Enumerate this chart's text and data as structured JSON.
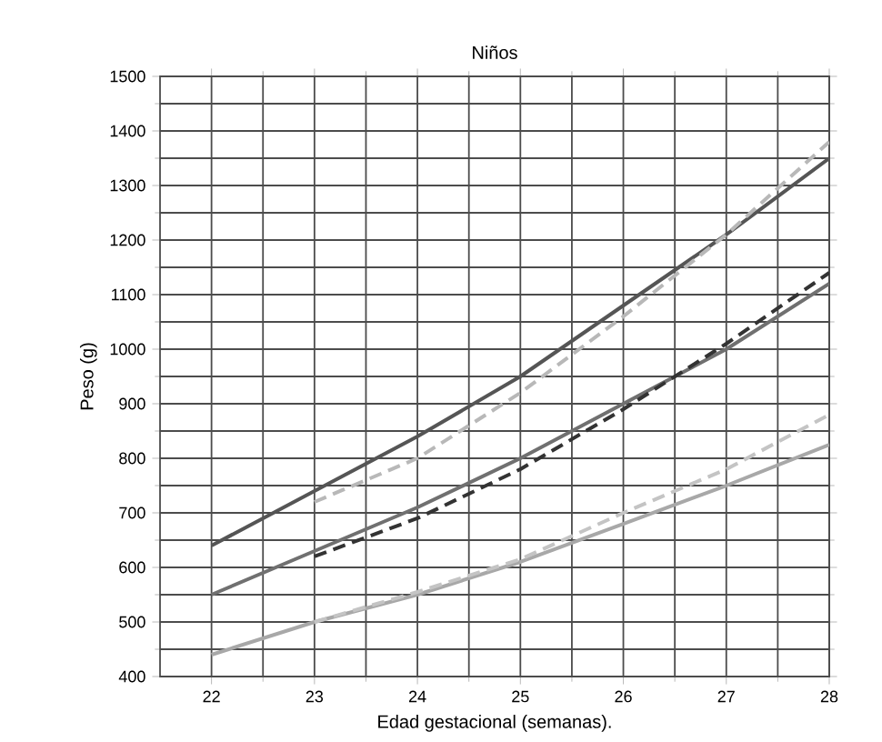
{
  "chart_data": {
    "type": "line",
    "title": "Niños",
    "xlabel": "Edad gestacional (semanas).",
    "ylabel": "Peso (g)",
    "xlim": [
      21.5,
      28
    ],
    "ylim": [
      400,
      1500
    ],
    "xticks": [
      22,
      23,
      24,
      25,
      26,
      27,
      28
    ],
    "yticks": [
      400,
      500,
      600,
      700,
      800,
      900,
      1000,
      1100,
      1200,
      1300,
      1400,
      1500
    ],
    "grid": true,
    "marker": "none",
    "series": [
      {
        "color": "#555555",
        "line_style": "solid",
        "x": [
          22,
          23,
          24,
          25,
          26,
          27,
          28
        ],
        "values": [
          640,
          740,
          840,
          950,
          1080,
          1210,
          1350
        ]
      },
      {
        "color": "#b8b8b8",
        "line_style": "dashed",
        "x": [
          23,
          24,
          25,
          26,
          27,
          28
        ],
        "values": [
          720,
          800,
          920,
          1060,
          1210,
          1380
        ]
      },
      {
        "color": "#707070",
        "line_style": "solid",
        "x": [
          22,
          23,
          24,
          25,
          26,
          27,
          28
        ],
        "values": [
          550,
          630,
          710,
          800,
          900,
          1000,
          1120
        ]
      },
      {
        "color": "#333333",
        "line_style": "dashed",
        "x": [
          23,
          24,
          25,
          26,
          27,
          28
        ],
        "values": [
          620,
          690,
          780,
          890,
          1010,
          1140
        ]
      },
      {
        "color": "#a8a8a8",
        "line_style": "solid",
        "x": [
          22,
          23,
          24,
          25,
          26,
          27,
          28
        ],
        "values": [
          440,
          500,
          550,
          610,
          680,
          750,
          825
        ]
      },
      {
        "color": "#c4c4c4",
        "line_style": "dashed",
        "x": [
          23,
          24,
          25,
          26,
          27,
          28
        ],
        "values": [
          500,
          555,
          615,
          700,
          780,
          880
        ]
      }
    ]
  }
}
